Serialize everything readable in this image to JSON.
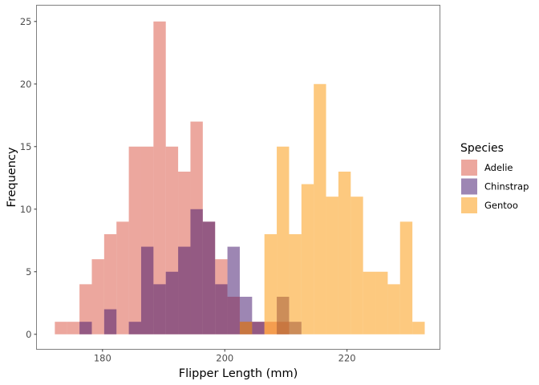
{
  "chart_data": {
    "type": "histogram",
    "title": "",
    "xlabel": "Flipper Length (mm)",
    "ylabel": "Frequency",
    "xlim": [
      169.2,
      235.2
    ],
    "ylim": [
      -1.2,
      26.3
    ],
    "xticks": [
      180,
      200,
      220
    ],
    "yticks": [
      0,
      5,
      10,
      15,
      20,
      25
    ],
    "bin_start": 172.2,
    "bin_width": 2.017,
    "grid": false,
    "legend": {
      "title": "Species",
      "position": "right"
    },
    "series": [
      {
        "name": "Adelie",
        "color": "#D94F3D",
        "values": [
          1,
          1,
          4,
          6,
          8,
          9,
          15,
          15,
          25,
          15,
          13,
          17,
          9,
          6,
          3,
          1,
          1,
          1,
          1,
          0,
          0,
          0,
          0,
          0,
          0,
          0,
          0,
          0,
          0,
          0
        ]
      },
      {
        "name": "Chinstrap",
        "color": "#3B0D67",
        "values": [
          0,
          0,
          1,
          0,
          2,
          0,
          1,
          7,
          4,
          5,
          7,
          10,
          9,
          4,
          7,
          3,
          1,
          0,
          3,
          1,
          0,
          0,
          0,
          0,
          0,
          0,
          0,
          0,
          0,
          0
        ]
      },
      {
        "name": "Gentoo",
        "color": "#FB9300",
        "values": [
          0,
          0,
          0,
          0,
          0,
          0,
          0,
          0,
          0,
          0,
          0,
          0,
          0,
          0,
          0,
          1,
          0,
          8,
          15,
          8,
          12,
          20,
          11,
          13,
          11,
          5,
          5,
          4,
          9,
          1
        ]
      }
    ]
  }
}
